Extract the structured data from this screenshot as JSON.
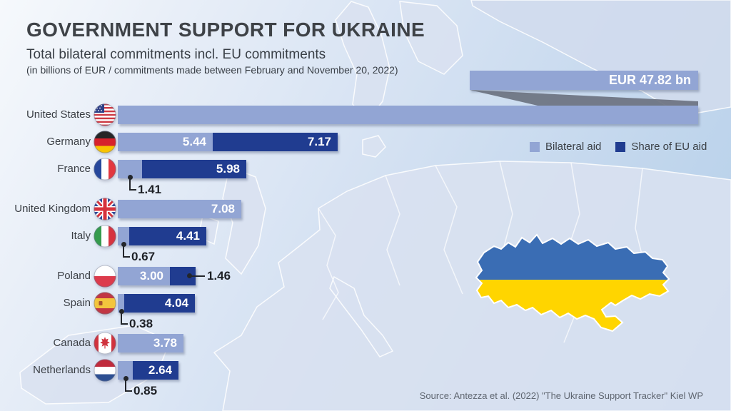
{
  "header": {
    "title": "GOVERNMENT SUPPORT FOR UKRAINE",
    "subtitle": "Total bilateral commitments incl. EU commitments",
    "note": "(in billions of EUR / commitments made between February and November 20, 2022)"
  },
  "legend": {
    "items": [
      "Bilateral aid",
      "Share of EU aid"
    ]
  },
  "source": "Source: Antezza et al. (2022) \"The Ukraine Support Tracker\" Kiel WP",
  "map": {
    "ukraine_blue": "#3a6db4",
    "ukraine_yellow": "#ffd500"
  },
  "chart_data": {
    "type": "bar",
    "orientation": "horizontal",
    "title": "GOVERNMENT SUPPORT FOR UKRAINE",
    "subtitle": "Total bilateral commitments incl. EU commitments",
    "unit_note": "(in billions of EUR / commitments made between February and November 20, 2022)",
    "series": [
      "Bilateral aid",
      "Share of EU aid"
    ],
    "colors": {
      "bilateral": "#92a5d4",
      "eu_share": "#203c90"
    },
    "legend_position": "right",
    "rows": [
      {
        "country": "United States",
        "flag": "us",
        "bilateral": 47.82,
        "eu_share": null,
        "bilateral_label": "EUR 47.82 bn",
        "eu_label": null,
        "bilateral_label_style": "callout-top",
        "eu_label_style": null,
        "bar_truncated": true
      },
      {
        "country": "Germany",
        "flag": "de",
        "bilateral": 5.44,
        "eu_share": 7.17,
        "bilateral_label": "5.44",
        "eu_label": "7.17",
        "bilateral_label_style": "inside",
        "eu_label_style": "inside",
        "bar_truncated": false
      },
      {
        "country": "France",
        "flag": "fr",
        "bilateral": 1.41,
        "eu_share": 5.98,
        "bilateral_label": "1.41",
        "eu_label": "5.98",
        "bilateral_label_style": "below",
        "eu_label_style": "inside",
        "bar_truncated": false
      },
      {
        "country": "United Kingdom",
        "flag": "uk",
        "bilateral": 7.08,
        "eu_share": null,
        "bilateral_label": "7.08",
        "eu_label": null,
        "bilateral_label_style": "inside",
        "eu_label_style": null,
        "bar_truncated": false
      },
      {
        "country": "Italy",
        "flag": "it",
        "bilateral": 0.67,
        "eu_share": 4.41,
        "bilateral_label": "0.67",
        "eu_label": "4.41",
        "bilateral_label_style": "below",
        "eu_label_style": "inside",
        "bar_truncated": false
      },
      {
        "country": "Poland",
        "flag": "pl",
        "bilateral": 3.0,
        "eu_share": 1.46,
        "bilateral_label": "3.00",
        "eu_label": "1.46",
        "bilateral_label_style": "inside",
        "eu_label_style": "right",
        "bar_truncated": false
      },
      {
        "country": "Spain",
        "flag": "es",
        "bilateral": 0.38,
        "eu_share": 4.04,
        "bilateral_label": "0.38",
        "eu_label": "4.04",
        "bilateral_label_style": "below",
        "eu_label_style": "inside",
        "bar_truncated": false
      },
      {
        "country": "Canada",
        "flag": "ca",
        "bilateral": 3.78,
        "eu_share": null,
        "bilateral_label": "3.78",
        "eu_label": null,
        "bilateral_label_style": "inside",
        "eu_label_style": null,
        "bar_truncated": false
      },
      {
        "country": "Netherlands",
        "flag": "nl",
        "bilateral": 0.85,
        "eu_share": 2.64,
        "bilateral_label": "0.85",
        "eu_label": "2.64",
        "bilateral_label_style": "below",
        "eu_label_style": "inside",
        "bar_truncated": false
      }
    ]
  }
}
